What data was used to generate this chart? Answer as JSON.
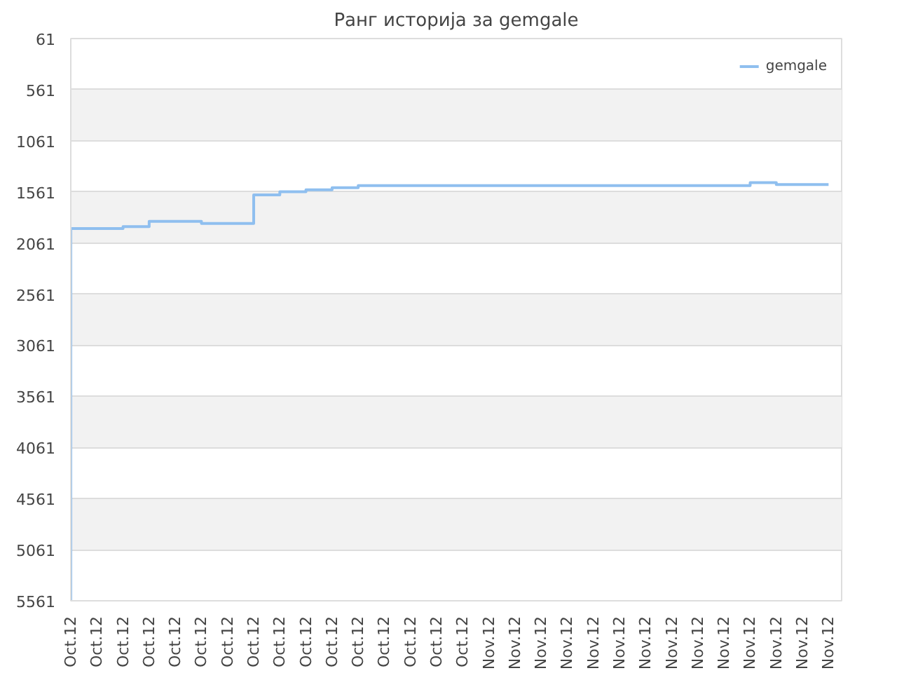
{
  "chart_data": {
    "type": "step",
    "title": "Ранг историја за gemgale",
    "categories": [
      "Oct.12",
      "Oct.12",
      "Oct.12",
      "Oct.12",
      "Oct.12",
      "Oct.12",
      "Oct.12",
      "Oct.12",
      "Oct.12",
      "Oct.12",
      "Oct.12",
      "Oct.12",
      "Oct.12",
      "Oct.12",
      "Oct.12",
      "Oct.12",
      "Nov.12",
      "Nov.12",
      "Nov.12",
      "Nov.12",
      "Nov.12",
      "Nov.12",
      "Nov.12",
      "Nov.12",
      "Nov.12",
      "Nov.12",
      "Nov.12",
      "Nov.12",
      "Nov.12",
      "Nov.12"
    ],
    "series": [
      {
        "name": "gemgale",
        "color": "#8fbfef",
        "values": [
          5561,
          1920,
          1920,
          1900,
          1850,
          1850,
          1870,
          1870,
          1590,
          1560,
          1540,
          1520,
          1500,
          1500,
          1500,
          1500,
          1500,
          1500,
          1500,
          1500,
          1500,
          1500,
          1500,
          1500,
          1500,
          1500,
          1500,
          1470,
          1490,
          1490
        ]
      }
    ],
    "ylim": [
      5561,
      61
    ],
    "yticks": [
      61,
      561,
      1061,
      1561,
      2061,
      2561,
      3061,
      3561,
      4061,
      4561,
      5061,
      5561
    ],
    "grid": "y",
    "legend": "top right"
  }
}
